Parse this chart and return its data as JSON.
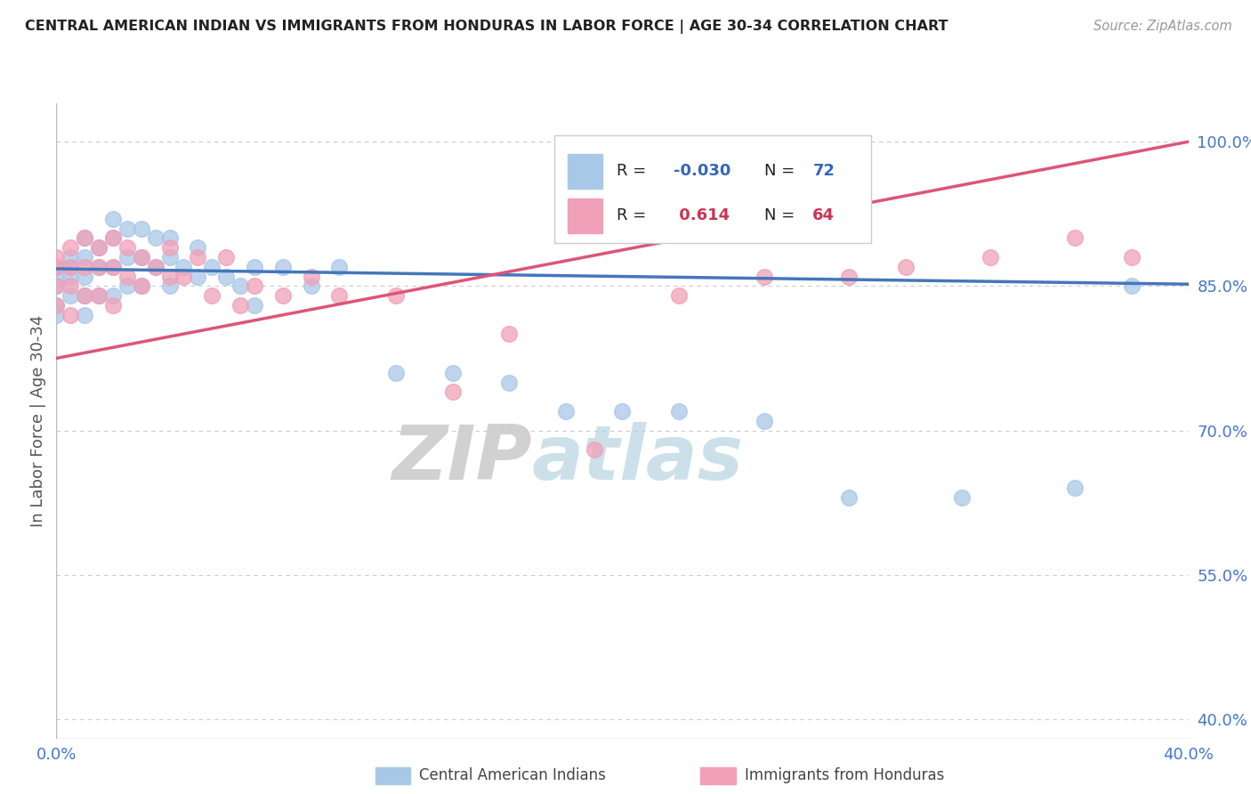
{
  "title": "CENTRAL AMERICAN INDIAN VS IMMIGRANTS FROM HONDURAS IN LABOR FORCE | AGE 30-34 CORRELATION CHART",
  "source": "Source: ZipAtlas.com",
  "ylabel": "In Labor Force | Age 30-34",
  "xlim": [
    0.0,
    0.4
  ],
  "ylim": [
    0.38,
    1.04
  ],
  "yticks": [
    0.4,
    0.55,
    0.7,
    0.85,
    1.0
  ],
  "ytick_labels": [
    "40.0%",
    "55.0%",
    "70.0%",
    "85.0%",
    "100.0%"
  ],
  "xticks": [
    0.0,
    0.4
  ],
  "xtick_labels": [
    "0.0%",
    "40.0%"
  ],
  "color_blue": "#a8c8e8",
  "color_pink": "#f0a0b8",
  "color_blue_line": "#4477bb",
  "color_pink_line": "#dd5577",
  "color_r_blue": "#3366bb",
  "color_r_pink": "#cc3355",
  "watermark_zip": "ZIP",
  "watermark_atlas": "atlas",
  "blue_scatter_x": [
    0.0,
    0.0,
    0.0,
    0.0,
    0.0,
    0.005,
    0.005,
    0.005,
    0.005,
    0.01,
    0.01,
    0.01,
    0.01,
    0.01,
    0.015,
    0.015,
    0.015,
    0.02,
    0.02,
    0.02,
    0.02,
    0.025,
    0.025,
    0.025,
    0.03,
    0.03,
    0.03,
    0.035,
    0.035,
    0.04,
    0.04,
    0.04,
    0.045,
    0.05,
    0.05,
    0.055,
    0.06,
    0.065,
    0.07,
    0.07,
    0.08,
    0.09,
    0.1,
    0.12,
    0.14,
    0.16,
    0.18,
    0.2,
    0.22,
    0.25,
    0.28,
    0.32,
    0.36,
    0.38
  ],
  "blue_scatter_y": [
    0.87,
    0.86,
    0.85,
    0.83,
    0.82,
    0.88,
    0.87,
    0.86,
    0.84,
    0.9,
    0.88,
    0.86,
    0.84,
    0.82,
    0.89,
    0.87,
    0.84,
    0.92,
    0.9,
    0.87,
    0.84,
    0.91,
    0.88,
    0.85,
    0.91,
    0.88,
    0.85,
    0.9,
    0.87,
    0.9,
    0.88,
    0.85,
    0.87,
    0.89,
    0.86,
    0.87,
    0.86,
    0.85,
    0.87,
    0.83,
    0.87,
    0.85,
    0.87,
    0.76,
    0.76,
    0.75,
    0.72,
    0.72,
    0.72,
    0.71,
    0.63,
    0.63,
    0.64,
    0.85
  ],
  "pink_scatter_x": [
    0.0,
    0.0,
    0.0,
    0.0,
    0.005,
    0.005,
    0.005,
    0.005,
    0.01,
    0.01,
    0.01,
    0.015,
    0.015,
    0.015,
    0.02,
    0.02,
    0.02,
    0.025,
    0.025,
    0.03,
    0.03,
    0.035,
    0.04,
    0.04,
    0.045,
    0.05,
    0.055,
    0.06,
    0.065,
    0.07,
    0.08,
    0.09,
    0.1,
    0.12,
    0.14,
    0.16,
    0.19,
    0.22,
    0.25,
    0.28,
    0.3,
    0.33,
    0.36,
    0.38
  ],
  "pink_scatter_y": [
    0.88,
    0.87,
    0.85,
    0.83,
    0.89,
    0.87,
    0.85,
    0.82,
    0.9,
    0.87,
    0.84,
    0.89,
    0.87,
    0.84,
    0.9,
    0.87,
    0.83,
    0.89,
    0.86,
    0.88,
    0.85,
    0.87,
    0.89,
    0.86,
    0.86,
    0.88,
    0.84,
    0.88,
    0.83,
    0.85,
    0.84,
    0.86,
    0.84,
    0.84,
    0.74,
    0.8,
    0.68,
    0.84,
    0.86,
    0.86,
    0.87,
    0.88,
    0.9,
    0.88
  ],
  "blue_line_x": [
    0.0,
    0.4
  ],
  "blue_line_y": [
    0.868,
    0.852
  ],
  "pink_line_x": [
    0.0,
    0.4
  ],
  "pink_line_y": [
    0.775,
    1.0
  ],
  "background_color": "#ffffff",
  "grid_color": "#cccccc"
}
